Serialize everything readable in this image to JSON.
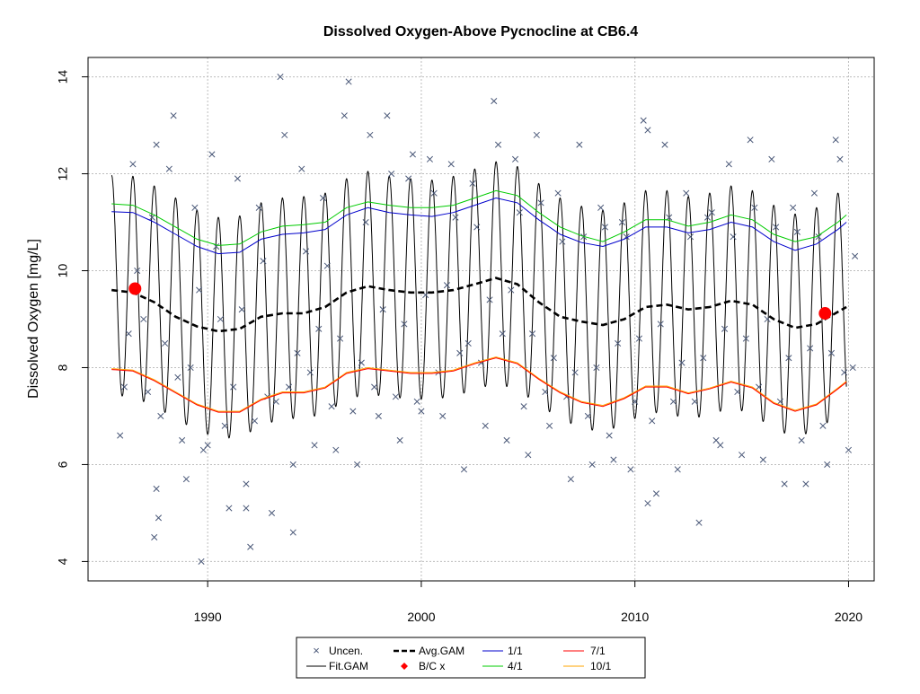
{
  "chart_data": {
    "type": "line",
    "title": "Dissolved Oxygen-Above Pycnocline at CB6.4",
    "ylabel": "Dissolved Oxygen [mg/L]",
    "xlabel": "",
    "xlim": [
      1984.4,
      2021.2
    ],
    "ylim": [
      3.6,
      14.4
    ],
    "xticks": [
      1990,
      2000,
      2010,
      2020
    ],
    "yticks": [
      4,
      6,
      8,
      10,
      12,
      14
    ],
    "grid": true,
    "legend_position": "bottom",
    "legend": {
      "uncen": "Uncen.",
      "fitgam": "Fit.GAM",
      "avggam": "Avg.GAM",
      "bcx": "B/C x",
      "d11": "1/1",
      "d41": "4/1",
      "d71": "7/1",
      "d101": "10/1"
    },
    "colors": {
      "uncen": "#4a5878",
      "fitgam": "#000000",
      "avggam": "#000000",
      "bcx": "#ff0000",
      "d11": "#0000cc",
      "d41": "#00cc00",
      "d71": "#ff0000",
      "d101": "#ffa500"
    },
    "series": [
      {
        "key": "d41",
        "x": [
          1985.5,
          1986.5,
          1987.5,
          1988.5,
          1989.5,
          1990.5,
          1991.5,
          1992.5,
          1993.5,
          1994.5,
          1995.5,
          1996.5,
          1997.5,
          1998.5,
          1999.5,
          2000.5,
          2001.5,
          2002.5,
          2003.5,
          2004.5,
          2005.5,
          2006.5,
          2007.5,
          2008.5,
          2009.5,
          2010.5,
          2011.5,
          2012.5,
          2013.5,
          2014.5,
          2015.5,
          2016.5,
          2017.5,
          2018.5,
          2019.5,
          2019.9
        ],
        "y": [
          11.38,
          11.35,
          11.15,
          10.9,
          10.65,
          10.52,
          10.55,
          10.8,
          10.92,
          10.95,
          11.0,
          11.3,
          11.42,
          11.35,
          11.3,
          11.3,
          11.35,
          11.5,
          11.65,
          11.55,
          11.2,
          10.9,
          10.72,
          10.6,
          10.8,
          11.05,
          11.05,
          10.92,
          11.0,
          11.15,
          11.05,
          10.75,
          10.6,
          10.7,
          11.0,
          11.15
        ]
      },
      {
        "key": "d11",
        "x": [
          1985.5,
          1986.5,
          1987.5,
          1988.5,
          1989.5,
          1990.5,
          1991.5,
          1992.5,
          1993.5,
          1994.5,
          1995.5,
          1996.5,
          1997.5,
          1998.5,
          1999.5,
          2000.5,
          2001.5,
          2002.5,
          2003.5,
          2004.5,
          2005.5,
          2006.5,
          2007.5,
          2008.5,
          2009.5,
          2010.5,
          2011.5,
          2012.5,
          2013.5,
          2014.5,
          2015.5,
          2016.5,
          2017.5,
          2018.5,
          2019.5,
          2019.9
        ],
        "y": [
          11.22,
          11.2,
          11.0,
          10.75,
          10.5,
          10.35,
          10.38,
          10.65,
          10.75,
          10.78,
          10.85,
          11.15,
          11.3,
          11.2,
          11.15,
          11.12,
          11.2,
          11.35,
          11.5,
          11.4,
          11.05,
          10.75,
          10.58,
          10.5,
          10.65,
          10.9,
          10.9,
          10.78,
          10.85,
          11.0,
          10.9,
          10.6,
          10.42,
          10.55,
          10.85,
          11.0
        ]
      },
      {
        "key": "d101",
        "x": [
          1985.5,
          1986.5,
          1987.5,
          1988.5,
          1989.5,
          1990.5,
          1991.5,
          1992.5,
          1993.5,
          1994.5,
          1995.5,
          1996.5,
          1997.5,
          1998.5,
          1999.5,
          2000.5,
          2001.5,
          2002.5,
          2003.5,
          2004.5,
          2005.5,
          2006.5,
          2007.5,
          2008.5,
          2009.5,
          2010.5,
          2011.5,
          2012.5,
          2013.5,
          2014.5,
          2015.5,
          2016.5,
          2017.5,
          2018.5,
          2019.5,
          2019.9
        ],
        "y": [
          7.98,
          7.95,
          7.75,
          7.5,
          7.25,
          7.1,
          7.1,
          7.35,
          7.5,
          7.5,
          7.6,
          7.9,
          8.0,
          7.95,
          7.9,
          7.9,
          7.95,
          8.1,
          8.22,
          8.1,
          7.78,
          7.5,
          7.3,
          7.22,
          7.38,
          7.62,
          7.62,
          7.48,
          7.58,
          7.72,
          7.6,
          7.28,
          7.12,
          7.25,
          7.58,
          7.72
        ]
      },
      {
        "key": "d71",
        "x": [
          1985.5,
          1986.5,
          1987.5,
          1988.5,
          1989.5,
          1990.5,
          1991.5,
          1992.5,
          1993.5,
          1994.5,
          1995.5,
          1996.5,
          1997.5,
          1998.5,
          1999.5,
          2000.5,
          2001.5,
          2002.5,
          2003.5,
          2004.5,
          2005.5,
          2006.5,
          2007.5,
          2008.5,
          2009.5,
          2010.5,
          2011.5,
          2012.5,
          2013.5,
          2014.5,
          2015.5,
          2016.5,
          2017.5,
          2018.5,
          2019.5,
          2019.9
        ],
        "y": [
          7.96,
          7.93,
          7.73,
          7.48,
          7.23,
          7.08,
          7.08,
          7.33,
          7.48,
          7.48,
          7.58,
          7.88,
          7.98,
          7.93,
          7.88,
          7.88,
          7.93,
          8.08,
          8.2,
          8.08,
          7.76,
          7.48,
          7.28,
          7.2,
          7.36,
          7.6,
          7.6,
          7.46,
          7.56,
          7.7,
          7.58,
          7.26,
          7.1,
          7.23,
          7.56,
          7.7
        ]
      },
      {
        "key": "avggam",
        "x": [
          1985.5,
          1986.5,
          1987.5,
          1988.5,
          1989.5,
          1990.5,
          1991.5,
          1992.5,
          1993.5,
          1994.5,
          1995.5,
          1996.5,
          1997.5,
          1998.5,
          1999.5,
          2000.5,
          2001.5,
          2002.5,
          2003.5,
          2004.5,
          2005.5,
          2006.5,
          2007.5,
          2008.5,
          2009.5,
          2010.5,
          2011.5,
          2012.5,
          2013.5,
          2014.5,
          2015.5,
          2016.5,
          2017.5,
          2018.5,
          2019.5,
          2019.9
        ],
        "y": [
          9.6,
          9.55,
          9.35,
          9.05,
          8.85,
          8.75,
          8.8,
          9.05,
          9.12,
          9.12,
          9.25,
          9.55,
          9.68,
          9.6,
          9.55,
          9.55,
          9.6,
          9.72,
          9.85,
          9.72,
          9.35,
          9.05,
          8.95,
          8.88,
          9.0,
          9.25,
          9.3,
          9.2,
          9.25,
          9.38,
          9.3,
          9.0,
          8.82,
          8.9,
          9.15,
          9.25
        ]
      },
      {
        "key": "fitgam",
        "x_start": 1985.5,
        "x_end": 2019.9,
        "upper_offset_from_d11": 0.75,
        "lower_offset_from_d101": -0.55
      }
    ],
    "bc_points": [
      {
        "x": 1986.6,
        "y": 9.63
      },
      {
        "x": 2018.9,
        "y": 9.12
      }
    ],
    "observations": [
      [
        1985.9,
        6.6
      ],
      [
        1986.1,
        7.6
      ],
      [
        1986.3,
        8.7
      ],
      [
        1986.5,
        12.2
      ],
      [
        1986.7,
        10.0
      ],
      [
        1987.0,
        9.0
      ],
      [
        1987.2,
        7.5
      ],
      [
        1987.4,
        11.1
      ],
      [
        1987.6,
        12.6
      ],
      [
        1987.8,
        7.0
      ],
      [
        1988.0,
        8.5
      ],
      [
        1988.2,
        12.1
      ],
      [
        1988.4,
        13.2
      ],
      [
        1988.6,
        7.8
      ],
      [
        1988.8,
        6.5
      ],
      [
        1989.0,
        5.7
      ],
      [
        1989.2,
        8.0
      ],
      [
        1989.4,
        11.3
      ],
      [
        1989.6,
        9.6
      ],
      [
        1989.8,
        6.3
      ],
      [
        1990.0,
        6.4
      ],
      [
        1990.2,
        12.4
      ],
      [
        1990.4,
        10.5
      ],
      [
        1990.6,
        9.0
      ],
      [
        1990.8,
        6.8
      ],
      [
        1991.0,
        5.1
      ],
      [
        1991.2,
        7.6
      ],
      [
        1991.4,
        11.9
      ],
      [
        1991.6,
        9.2
      ],
      [
        1991.8,
        5.6
      ],
      [
        1992.0,
        4.3
      ],
      [
        1992.2,
        6.9
      ],
      [
        1992.4,
        11.3
      ],
      [
        1992.6,
        10.2
      ],
      [
        1992.8,
        7.4
      ],
      [
        1993.0,
        5.0
      ],
      [
        1993.2,
        7.3
      ],
      [
        1993.4,
        14.0
      ],
      [
        1993.6,
        12.8
      ],
      [
        1993.8,
        7.6
      ],
      [
        1994.0,
        6.0
      ],
      [
        1994.2,
        8.3
      ],
      [
        1994.4,
        12.1
      ],
      [
        1994.6,
        10.4
      ],
      [
        1994.8,
        7.9
      ],
      [
        1995.0,
        6.4
      ],
      [
        1995.2,
        8.8
      ],
      [
        1995.4,
        11.5
      ],
      [
        1995.6,
        10.1
      ],
      [
        1995.8,
        7.2
      ],
      [
        1996.0,
        6.3
      ],
      [
        1996.2,
        8.6
      ],
      [
        1996.4,
        13.2
      ],
      [
        1996.6,
        13.9
      ],
      [
        1996.8,
        7.1
      ],
      [
        1997.0,
        6.0
      ],
      [
        1997.2,
        8.1
      ],
      [
        1997.4,
        11.0
      ],
      [
        1997.6,
        12.8
      ],
      [
        1997.8,
        7.6
      ],
      [
        1998.0,
        7.0
      ],
      [
        1998.2,
        9.2
      ],
      [
        1998.4,
        13.2
      ],
      [
        1998.6,
        12.0
      ],
      [
        1998.8,
        7.4
      ],
      [
        1999.0,
        6.5
      ],
      [
        1999.2,
        8.9
      ],
      [
        1999.4,
        11.9
      ],
      [
        1999.6,
        12.4
      ],
      [
        1999.8,
        7.3
      ],
      [
        2000.0,
        7.1
      ],
      [
        2000.2,
        9.5
      ],
      [
        2000.4,
        12.3
      ],
      [
        2000.6,
        11.6
      ],
      [
        2000.8,
        7.9
      ],
      [
        2001.0,
        7.0
      ],
      [
        2001.2,
        9.7
      ],
      [
        2001.4,
        12.2
      ],
      [
        2001.6,
        11.1
      ],
      [
        2001.8,
        8.3
      ],
      [
        2002.0,
        5.9
      ],
      [
        2002.2,
        8.5
      ],
      [
        2002.4,
        11.8
      ],
      [
        2002.6,
        10.9
      ],
      [
        2002.8,
        8.1
      ],
      [
        2003.0,
        6.8
      ],
      [
        2003.2,
        9.4
      ],
      [
        2003.4,
        13.5
      ],
      [
        2003.6,
        12.6
      ],
      [
        2003.8,
        8.7
      ],
      [
        2004.0,
        6.5
      ],
      [
        2004.2,
        9.6
      ],
      [
        2004.4,
        12.3
      ],
      [
        2004.6,
        11.2
      ],
      [
        2004.8,
        7.2
      ],
      [
        2005.0,
        6.2
      ],
      [
        2005.2,
        8.7
      ],
      [
        2005.4,
        12.8
      ],
      [
        2005.6,
        11.4
      ],
      [
        2005.8,
        7.5
      ],
      [
        2006.0,
        6.8
      ],
      [
        2006.2,
        8.2
      ],
      [
        2006.4,
        11.6
      ],
      [
        2006.6,
        10.6
      ],
      [
        2006.8,
        7.4
      ],
      [
        2007.0,
        5.7
      ],
      [
        2007.2,
        7.9
      ],
      [
        2007.4,
        12.6
      ],
      [
        2007.6,
        10.7
      ],
      [
        2007.8,
        7.0
      ],
      [
        2008.0,
        6.0
      ],
      [
        2008.2,
        8.0
      ],
      [
        2008.4,
        11.3
      ],
      [
        2008.6,
        10.9
      ],
      [
        2008.8,
        6.6
      ],
      [
        2009.0,
        6.1
      ],
      [
        2009.2,
        8.5
      ],
      [
        2009.4,
        11.0
      ],
      [
        2009.6,
        10.7
      ],
      [
        2009.8,
        5.9
      ],
      [
        2010.0,
        7.3
      ],
      [
        2010.2,
        8.6
      ],
      [
        2010.4,
        13.1
      ],
      [
        2010.6,
        12.9
      ],
      [
        2010.8,
        6.9
      ],
      [
        2011.0,
        5.4
      ],
      [
        2011.2,
        8.9
      ],
      [
        2011.4,
        12.6
      ],
      [
        2011.6,
        11.1
      ],
      [
        2011.8,
        7.3
      ],
      [
        2012.0,
        5.9
      ],
      [
        2012.2,
        8.1
      ],
      [
        2012.4,
        11.6
      ],
      [
        2012.6,
        10.7
      ],
      [
        2012.8,
        7.3
      ],
      [
        2013.0,
        4.8
      ],
      [
        2013.2,
        8.2
      ],
      [
        2013.4,
        11.1
      ],
      [
        2013.6,
        11.2
      ],
      [
        2013.8,
        6.5
      ],
      [
        2014.0,
        6.4
      ],
      [
        2014.2,
        8.8
      ],
      [
        2014.4,
        12.2
      ],
      [
        2014.6,
        10.7
      ],
      [
        2014.8,
        7.5
      ],
      [
        2015.0,
        6.2
      ],
      [
        2015.2,
        8.6
      ],
      [
        2015.4,
        12.7
      ],
      [
        2015.6,
        11.3
      ],
      [
        2015.8,
        7.6
      ],
      [
        2016.0,
        6.1
      ],
      [
        2016.2,
        9.0
      ],
      [
        2016.4,
        12.3
      ],
      [
        2016.6,
        10.9
      ],
      [
        2016.8,
        7.3
      ],
      [
        2017.0,
        5.6
      ],
      [
        2017.2,
        8.2
      ],
      [
        2017.4,
        11.3
      ],
      [
        2017.6,
        10.8
      ],
      [
        2017.8,
        6.5
      ],
      [
        2018.0,
        5.6
      ],
      [
        2018.2,
        8.4
      ],
      [
        2018.4,
        11.6
      ],
      [
        2018.6,
        10.7
      ],
      [
        2018.8,
        6.8
      ],
      [
        2019.0,
        6.0
      ],
      [
        2019.2,
        8.3
      ],
      [
        2019.4,
        12.7
      ],
      [
        2019.6,
        12.3
      ],
      [
        2019.8,
        7.9
      ],
      [
        2020.0,
        6.3
      ],
      [
        2020.2,
        8.0
      ],
      [
        2020.3,
        10.3
      ],
      [
        1987.5,
        4.5
      ],
      [
        1987.7,
        4.9
      ],
      [
        1989.7,
        4.0
      ],
      [
        1994.0,
        4.6
      ],
      [
        1987.6,
        5.5
      ],
      [
        1991.8,
        5.1
      ],
      [
        2010.6,
        5.2
      ]
    ]
  }
}
